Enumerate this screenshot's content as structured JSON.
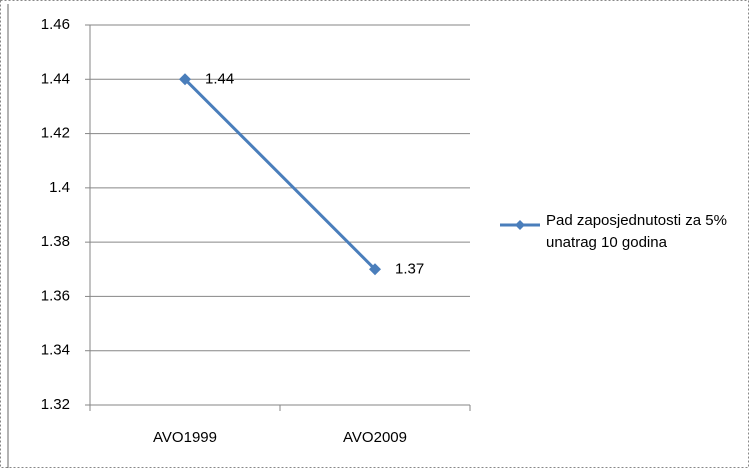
{
  "chart_data": {
    "type": "line",
    "categories": [
      "AVO1999",
      "AVO2009"
    ],
    "series": [
      {
        "name": "Pad zaposjednutosti za 5% unatrag 10 godina",
        "color": "#4a7ebb",
        "values": [
          1.44,
          1.37
        ]
      }
    ],
    "ylim": [
      1.32,
      1.46
    ],
    "yticks": [
      1.32,
      1.34,
      1.36,
      1.38,
      1.4,
      1.42,
      1.44,
      1.46
    ],
    "grid": true,
    "legend": "right"
  }
}
